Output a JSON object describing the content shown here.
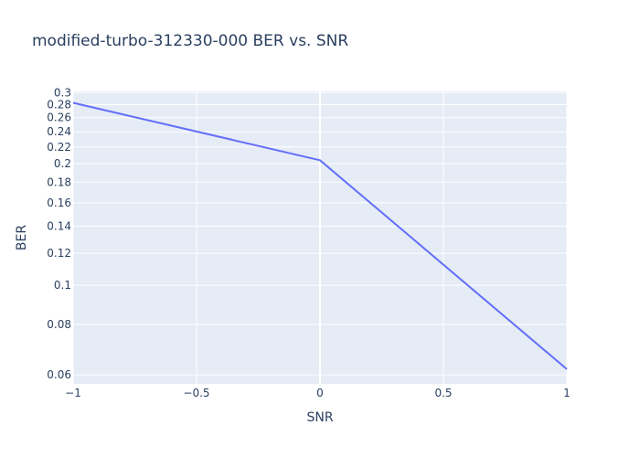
{
  "chart_data": {
    "type": "line",
    "title": "modified-turbo-312330-000 BER vs. SNR",
    "xlabel": "SNR",
    "ylabel": "BER",
    "yscale": "log",
    "xlim": [
      -1,
      1
    ],
    "ylim": [
      0.057,
      0.302
    ],
    "grid": true,
    "x_ticks": [
      {
        "value": -1,
        "label": "−1"
      },
      {
        "value": -0.5,
        "label": "−0.5"
      },
      {
        "value": 0,
        "label": "0"
      },
      {
        "value": 0.5,
        "label": "0.5"
      },
      {
        "value": 1,
        "label": "1"
      }
    ],
    "y_ticks": [
      {
        "value": 0.06,
        "label": "0.06"
      },
      {
        "value": 0.08,
        "label": "0.08"
      },
      {
        "value": 0.1,
        "label": "0.1"
      },
      {
        "value": 0.12,
        "label": "0.12"
      },
      {
        "value": 0.14,
        "label": "0.14"
      },
      {
        "value": 0.16,
        "label": "0.16"
      },
      {
        "value": 0.18,
        "label": "0.18"
      },
      {
        "value": 0.2,
        "label": "0.2"
      },
      {
        "value": 0.22,
        "label": "0.22"
      },
      {
        "value": 0.24,
        "label": "0.24"
      },
      {
        "value": 0.26,
        "label": "0.26"
      },
      {
        "value": 0.28,
        "label": "0.28"
      },
      {
        "value": 0.3,
        "label": "0.3"
      }
    ],
    "series": [
      {
        "x": [
          -1,
          0,
          1
        ],
        "y": [
          0.283,
          0.204,
          0.062
        ],
        "color": "#636efa"
      }
    ]
  }
}
